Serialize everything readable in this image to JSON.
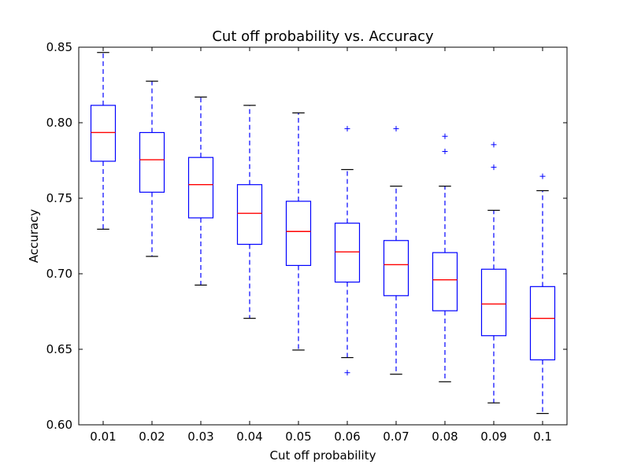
{
  "chart_data": {
    "type": "box",
    "title": "Cut off probability vs. Accuracy",
    "xlabel": "Cut off probability",
    "ylabel": "Accuracy",
    "ylim": [
      0.6,
      0.85
    ],
    "yticks": [
      "0.60",
      "0.65",
      "0.70",
      "0.75",
      "0.80",
      "0.85"
    ],
    "grid": false,
    "colors": {
      "box": "#0000ff",
      "median": "#ff0000",
      "cap": "#000000",
      "outlier": "#0000ff"
    },
    "categories": [
      "0.01",
      "0.02",
      "0.03",
      "0.04",
      "0.05",
      "0.06",
      "0.07",
      "0.08",
      "0.09",
      "0.1"
    ],
    "boxes": [
      {
        "category": "0.01",
        "whisker_low": 0.7295,
        "q1": 0.7745,
        "median": 0.7935,
        "q3": 0.8115,
        "whisker_high": 0.8465,
        "outliers": []
      },
      {
        "category": "0.02",
        "whisker_low": 0.7115,
        "q1": 0.754,
        "median": 0.7755,
        "q3": 0.7935,
        "whisker_high": 0.8275,
        "outliers": []
      },
      {
        "category": "0.03",
        "whisker_low": 0.6925,
        "q1": 0.737,
        "median": 0.759,
        "q3": 0.777,
        "whisker_high": 0.817,
        "outliers": []
      },
      {
        "category": "0.04",
        "whisker_low": 0.6705,
        "q1": 0.7195,
        "median": 0.74,
        "q3": 0.759,
        "whisker_high": 0.8115,
        "outliers": []
      },
      {
        "category": "0.05",
        "whisker_low": 0.6495,
        "q1": 0.7055,
        "median": 0.728,
        "q3": 0.748,
        "whisker_high": 0.8065,
        "outliers": []
      },
      {
        "category": "0.06",
        "whisker_low": 0.6445,
        "q1": 0.6945,
        "median": 0.7145,
        "q3": 0.7335,
        "whisker_high": 0.769,
        "outliers": [
          0.6345,
          0.796
        ]
      },
      {
        "category": "0.07",
        "whisker_low": 0.6335,
        "q1": 0.6855,
        "median": 0.706,
        "q3": 0.722,
        "whisker_high": 0.758,
        "outliers": [
          0.796
        ]
      },
      {
        "category": "0.08",
        "whisker_low": 0.6285,
        "q1": 0.6755,
        "median": 0.696,
        "q3": 0.714,
        "whisker_high": 0.758,
        "outliers": [
          0.781,
          0.791
        ]
      },
      {
        "category": "0.09",
        "whisker_low": 0.6145,
        "q1": 0.659,
        "median": 0.68,
        "q3": 0.703,
        "whisker_high": 0.742,
        "outliers": [
          0.7705,
          0.7855
        ]
      },
      {
        "category": "0.1",
        "whisker_low": 0.6075,
        "q1": 0.643,
        "median": 0.6705,
        "q3": 0.6915,
        "whisker_high": 0.755,
        "outliers": [
          0.7645
        ]
      }
    ]
  }
}
